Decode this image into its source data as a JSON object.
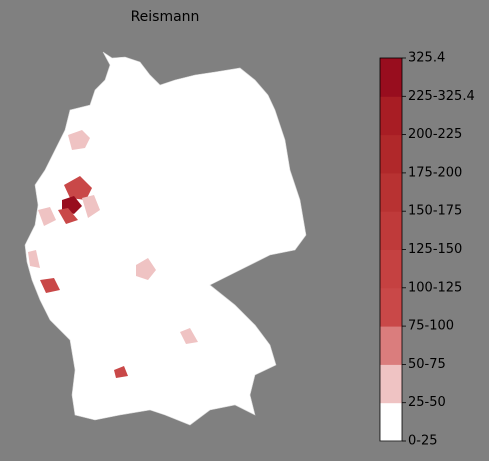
{
  "title": "Reismann",
  "legend": {
    "labels": [
      "0-25",
      "25-50",
      "50-75",
      "75-100",
      "100-125",
      "125-150",
      "150-175",
      "175-200",
      "200-225",
      "225-325.4",
      "325.4"
    ],
    "colors": [
      "#ffffff",
      "#efc3c3",
      "#da7d7d",
      "#c94848",
      "#c54141",
      "#bf3a3a",
      "#b83232",
      "#b0282a",
      "#a81d24",
      "#980d1e"
    ]
  }
}
